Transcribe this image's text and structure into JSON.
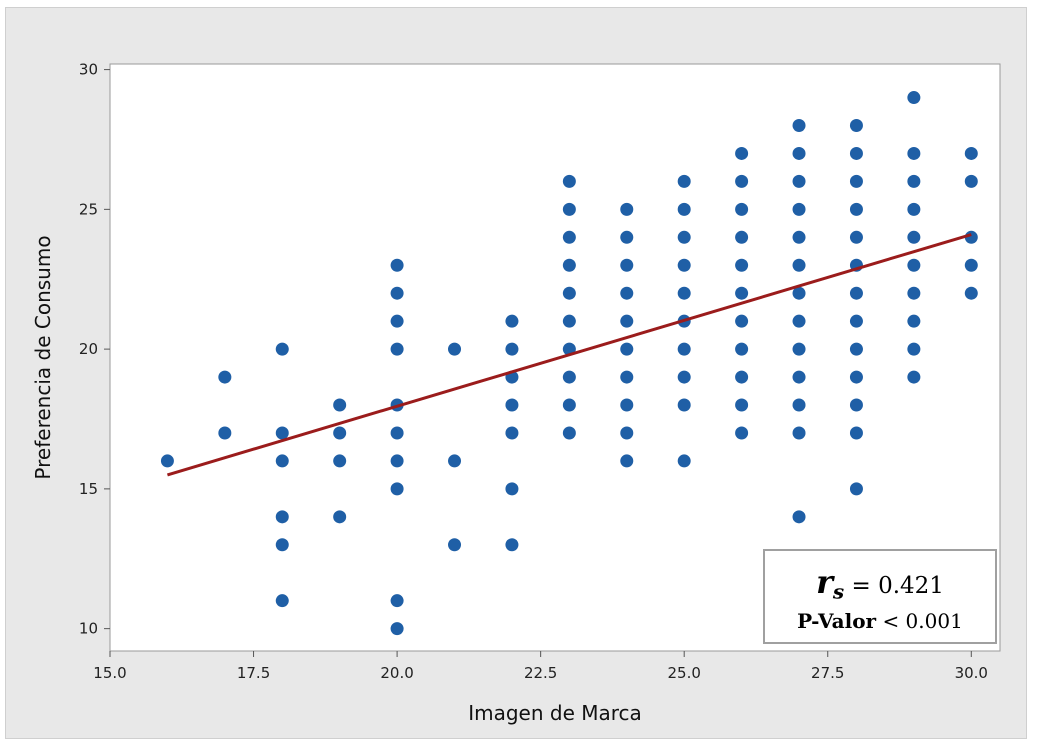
{
  "colors": {
    "points": "#1f5fa6",
    "fit_line": "#9b1c1c",
    "plot_bg": "#ffffff",
    "frame_bg": "#e8e8e8"
  },
  "stats": {
    "r_symbol": "r",
    "r_subscript": "s",
    "r_equals": "= 0.421",
    "p_label": "P-Valor",
    "p_value": "< 0.001"
  },
  "chart_data": {
    "type": "scatter",
    "xlabel": "Imagen de Marca",
    "ylabel": "Preferencia de Consumo",
    "xlim": [
      15,
      30.5
    ],
    "ylim": [
      9.2,
      30.2
    ],
    "xticks": [
      "15.0",
      "17.5",
      "20.0",
      "22.5",
      "25.0",
      "27.5",
      "30.0"
    ],
    "yticks": [
      "10",
      "15",
      "20",
      "25",
      "30"
    ],
    "grid": false,
    "points": [
      [
        16,
        16
      ],
      [
        17,
        19
      ],
      [
        17,
        17
      ],
      [
        18,
        20
      ],
      [
        18,
        17
      ],
      [
        18,
        16
      ],
      [
        18,
        14
      ],
      [
        18,
        13
      ],
      [
        18,
        11
      ],
      [
        19,
        18
      ],
      [
        19,
        17
      ],
      [
        19,
        16
      ],
      [
        19,
        14
      ],
      [
        20,
        23
      ],
      [
        20,
        22
      ],
      [
        20,
        21
      ],
      [
        20,
        20
      ],
      [
        20,
        18
      ],
      [
        20,
        17
      ],
      [
        20,
        16
      ],
      [
        20,
        15
      ],
      [
        20,
        11
      ],
      [
        20,
        10
      ],
      [
        21,
        20
      ],
      [
        21,
        16
      ],
      [
        21,
        13
      ],
      [
        22,
        21
      ],
      [
        22,
        20
      ],
      [
        22,
        19
      ],
      [
        22,
        18
      ],
      [
        22,
        17
      ],
      [
        22,
        15
      ],
      [
        22,
        13
      ],
      [
        23,
        26
      ],
      [
        23,
        25
      ],
      [
        23,
        24
      ],
      [
        23,
        23
      ],
      [
        23,
        22
      ],
      [
        23,
        21
      ],
      [
        23,
        20
      ],
      [
        23,
        19
      ],
      [
        23,
        18
      ],
      [
        23,
        17
      ],
      [
        24,
        25
      ],
      [
        24,
        24
      ],
      [
        24,
        23
      ],
      [
        24,
        22
      ],
      [
        24,
        21
      ],
      [
        24,
        20
      ],
      [
        24,
        19
      ],
      [
        24,
        18
      ],
      [
        24,
        17
      ],
      [
        24,
        16
      ],
      [
        25,
        26
      ],
      [
        25,
        25
      ],
      [
        25,
        24
      ],
      [
        25,
        23
      ],
      [
        25,
        22
      ],
      [
        25,
        21
      ],
      [
        25,
        20
      ],
      [
        25,
        19
      ],
      [
        25,
        18
      ],
      [
        25,
        16
      ],
      [
        26,
        27
      ],
      [
        26,
        26
      ],
      [
        26,
        25
      ],
      [
        26,
        24
      ],
      [
        26,
        23
      ],
      [
        26,
        22
      ],
      [
        26,
        21
      ],
      [
        26,
        20
      ],
      [
        26,
        19
      ],
      [
        26,
        18
      ],
      [
        26,
        17
      ],
      [
        27,
        28
      ],
      [
        27,
        27
      ],
      [
        27,
        26
      ],
      [
        27,
        25
      ],
      [
        27,
        24
      ],
      [
        27,
        23
      ],
      [
        27,
        22
      ],
      [
        27,
        21
      ],
      [
        27,
        20
      ],
      [
        27,
        19
      ],
      [
        27,
        18
      ],
      [
        27,
        17
      ],
      [
        27,
        14
      ],
      [
        28,
        28
      ],
      [
        28,
        27
      ],
      [
        28,
        26
      ],
      [
        28,
        25
      ],
      [
        28,
        24
      ],
      [
        28,
        23
      ],
      [
        28,
        22
      ],
      [
        28,
        21
      ],
      [
        28,
        20
      ],
      [
        28,
        19
      ],
      [
        28,
        18
      ],
      [
        28,
        17
      ],
      [
        28,
        15
      ],
      [
        29,
        29
      ],
      [
        29,
        27
      ],
      [
        29,
        26
      ],
      [
        29,
        25
      ],
      [
        29,
        24
      ],
      [
        29,
        23
      ],
      [
        29,
        22
      ],
      [
        29,
        21
      ],
      [
        29,
        20
      ],
      [
        29,
        19
      ],
      [
        30,
        27
      ],
      [
        30,
        26
      ],
      [
        30,
        24
      ],
      [
        30,
        23
      ],
      [
        30,
        22
      ]
    ],
    "fit_line": {
      "x": [
        16,
        30
      ],
      "y": [
        15.5,
        24.1
      ]
    }
  }
}
